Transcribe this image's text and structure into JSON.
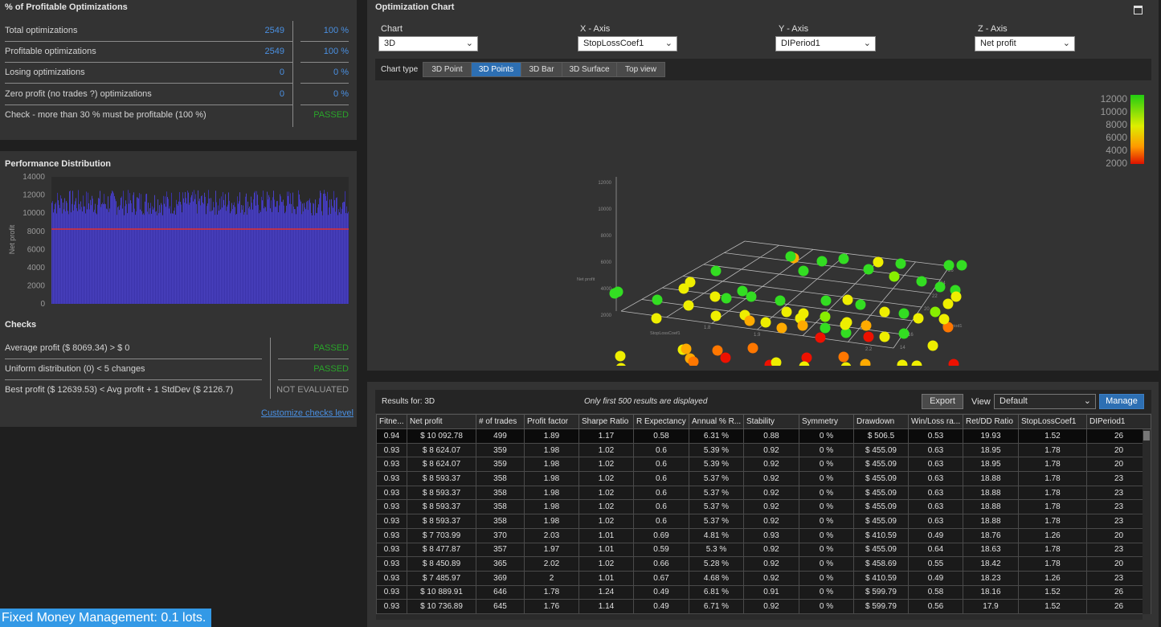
{
  "profitable": {
    "title": "% of Profitable Optimizations",
    "rows": [
      {
        "label": "Total optimizations",
        "count": "2549",
        "pct": "100 %"
      },
      {
        "label": "Profitable optimizations",
        "count": "2549",
        "pct": "100 %"
      },
      {
        "label": "Losing optimizations",
        "count": "0",
        "pct": "0 %"
      },
      {
        "label": "Zero profit (no trades ?) optimizations",
        "count": "0",
        "pct": "0 %"
      }
    ],
    "check_label": "Check - more than 30 % must be profitable (100 %)",
    "check_status": "PASSED"
  },
  "performance": {
    "title": "Performance Distribution",
    "ylabel": "Net profit",
    "yticks": [
      "14000",
      "12000",
      "10000",
      "8000",
      "6000",
      "4000",
      "2000",
      "0"
    ]
  },
  "checks": {
    "title": "Checks",
    "rows": [
      {
        "label": "Average profit ($ 8069.34) > $ 0",
        "status": "PASSED"
      },
      {
        "label": "Uniform distribution (0) < 5 changes",
        "status": "PASSED"
      },
      {
        "label": "Best profit ($ 12639.53) < Avg profit + 1 StdDev ($ 2126.7)",
        "status": "NOT EVALUATED"
      }
    ],
    "customize_link": "Customize checks level"
  },
  "opt_chart": {
    "title": "Optimization Chart",
    "chart_label": "Chart",
    "chart_value": "3D",
    "x_label": "X - Axis",
    "x_value": "StopLossCoef1",
    "y_label": "Y - Axis",
    "y_value": "DIPeriod1",
    "z_label": "Z - Axis",
    "z_value": "Net profit",
    "chart_type_label": "Chart type",
    "chart_types": [
      "3D Point",
      "3D Points",
      "3D Bar",
      "3D Surface",
      "Top view"
    ],
    "active_type": "3D Points",
    "z_ticks": [
      "12000",
      "10000",
      "8000",
      "6000",
      "4000",
      "2000"
    ],
    "x_axis_name": "StopLossCoef1",
    "y_axis_name": "DIPeriod1",
    "z_axis_name": "Net profit",
    "x_ticks": [
      "1.5",
      "1.8",
      "1.9",
      "2.2"
    ],
    "y_ticks": [
      "14",
      "16",
      "18",
      "20",
      "22",
      "24",
      "26"
    ],
    "legend_ticks": [
      "12000",
      "10000",
      "8000",
      "6000",
      "4000",
      "2000"
    ]
  },
  "results": {
    "label": "Results for: 3D",
    "notice": "Only first 500 results are displayed",
    "export": "Export",
    "view_label": "View",
    "view_value": "Default",
    "manage": "Manage",
    "columns": [
      "Fitne...",
      "Net profit",
      "# of trades",
      "Profit factor",
      "Sharpe Ratio",
      "R Expectancy",
      "Annual % R...",
      "Stability",
      "Symmetry",
      "Drawdown",
      "Win/Loss ra...",
      "Ret/DD Ratio",
      "StopLossCoef1",
      "DIPeriod1"
    ],
    "rows": [
      [
        "0.94",
        "$ 10 092.78",
        "499",
        "1.89",
        "1.17",
        "0.58",
        "6.31 %",
        "0.88",
        "0 %",
        "$ 506.5",
        "0.53",
        "19.93",
        "1.52",
        "26"
      ],
      [
        "0.93",
        "$ 8 624.07",
        "359",
        "1.98",
        "1.02",
        "0.6",
        "5.39 %",
        "0.92",
        "0 %",
        "$ 455.09",
        "0.63",
        "18.95",
        "1.78",
        "20"
      ],
      [
        "0.93",
        "$ 8 624.07",
        "359",
        "1.98",
        "1.02",
        "0.6",
        "5.39 %",
        "0.92",
        "0 %",
        "$ 455.09",
        "0.63",
        "18.95",
        "1.78",
        "20"
      ],
      [
        "0.93",
        "$ 8 593.37",
        "358",
        "1.98",
        "1.02",
        "0.6",
        "5.37 %",
        "0.92",
        "0 %",
        "$ 455.09",
        "0.63",
        "18.88",
        "1.78",
        "23"
      ],
      [
        "0.93",
        "$ 8 593.37",
        "358",
        "1.98",
        "1.02",
        "0.6",
        "5.37 %",
        "0.92",
        "0 %",
        "$ 455.09",
        "0.63",
        "18.88",
        "1.78",
        "23"
      ],
      [
        "0.93",
        "$ 8 593.37",
        "358",
        "1.98",
        "1.02",
        "0.6",
        "5.37 %",
        "0.92",
        "0 %",
        "$ 455.09",
        "0.63",
        "18.88",
        "1.78",
        "23"
      ],
      [
        "0.93",
        "$ 8 593.37",
        "358",
        "1.98",
        "1.02",
        "0.6",
        "5.37 %",
        "0.92",
        "0 %",
        "$ 455.09",
        "0.63",
        "18.88",
        "1.78",
        "23"
      ],
      [
        "0.93",
        "$ 7 703.99",
        "370",
        "2.03",
        "1.01",
        "0.69",
        "4.81 %",
        "0.93",
        "0 %",
        "$ 410.59",
        "0.49",
        "18.76",
        "1.26",
        "20"
      ],
      [
        "0.93",
        "$ 8 477.87",
        "357",
        "1.97",
        "1.01",
        "0.59",
        "5.3 %",
        "0.92",
        "0 %",
        "$ 455.09",
        "0.64",
        "18.63",
        "1.78",
        "23"
      ],
      [
        "0.93",
        "$ 8 450.89",
        "365",
        "2.02",
        "1.02",
        "0.66",
        "5.28 %",
        "0.92",
        "0 %",
        "$ 458.69",
        "0.55",
        "18.42",
        "1.78",
        "20"
      ],
      [
        "0.93",
        "$ 7 485.97",
        "369",
        "2",
        "1.01",
        "0.67",
        "4.68 %",
        "0.92",
        "0 %",
        "$ 410.59",
        "0.49",
        "18.23",
        "1.26",
        "23"
      ],
      [
        "0.93",
        "$ 10 889.91",
        "646",
        "1.78",
        "1.24",
        "0.49",
        "6.81 %",
        "0.91",
        "0 %",
        "$ 599.79",
        "0.58",
        "18.16",
        "1.52",
        "26"
      ],
      [
        "0.93",
        "$ 10 736.89",
        "645",
        "1.76",
        "1.14",
        "0.49",
        "6.71 %",
        "0.92",
        "0 %",
        "$ 599.79",
        "0.56",
        "17.9",
        "1.52",
        "26"
      ]
    ]
  },
  "status_bar": {
    "text": "Fixed Money Management: 0.1 lots."
  },
  "colors": {
    "accent": "#2d6fb3",
    "link": "#4a90e2",
    "passed": "#2aa52a",
    "hist_fill": "#3a32a8",
    "avg_line": "#e03030"
  }
}
